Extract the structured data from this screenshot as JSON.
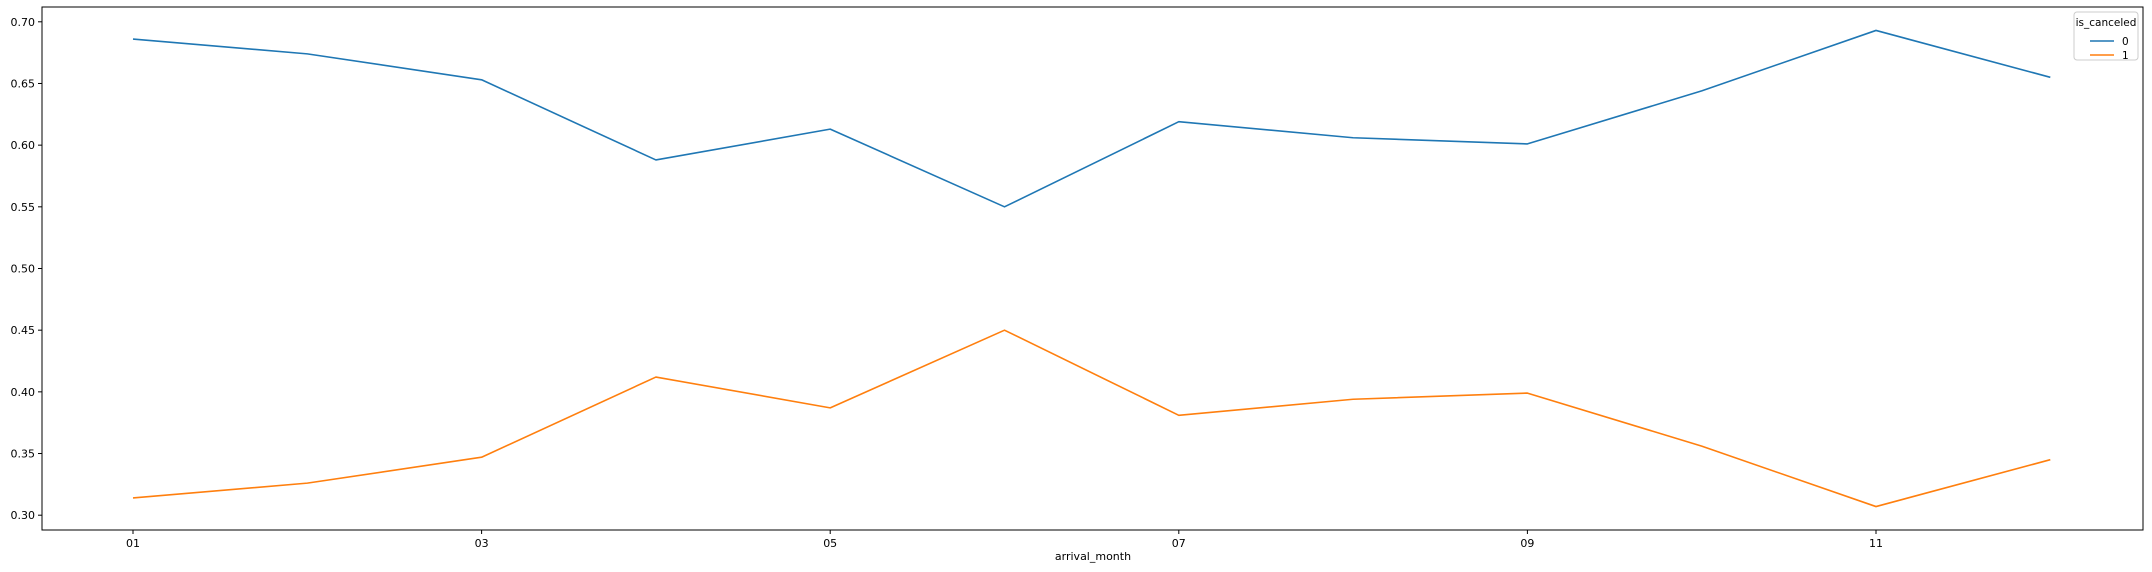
{
  "chart_data": {
    "type": "line",
    "title": "",
    "xlabel": "arrival_month",
    "ylabel": "",
    "categories": [
      "01",
      "02",
      "03",
      "04",
      "05",
      "06",
      "07",
      "08",
      "09",
      "10",
      "11",
      "12"
    ],
    "x_tick_labels": [
      "01",
      "03",
      "05",
      "07",
      "09",
      "11"
    ],
    "ylim": [
      0.288,
      0.712
    ],
    "y_ticks": [
      0.3,
      0.35,
      0.4,
      0.45,
      0.5,
      0.55,
      0.6,
      0.65,
      0.7
    ],
    "y_tick_labels": [
      "0.30",
      "0.35",
      "0.40",
      "0.45",
      "0.50",
      "0.55",
      "0.60",
      "0.65",
      "0.70"
    ],
    "grid": false,
    "legend": {
      "title": "is_canceled",
      "placement": "top-right"
    },
    "series": [
      {
        "name": "0",
        "color": "#1f77b4",
        "values": [
          0.686,
          0.674,
          0.653,
          0.588,
          0.613,
          0.55,
          0.619,
          0.606,
          0.601,
          0.644,
          0.693,
          0.655
        ]
      },
      {
        "name": "1",
        "color": "#ff7f0e",
        "values": [
          0.314,
          0.326,
          0.347,
          0.412,
          0.387,
          0.45,
          0.381,
          0.394,
          0.399,
          0.356,
          0.307,
          0.345
        ]
      }
    ]
  }
}
